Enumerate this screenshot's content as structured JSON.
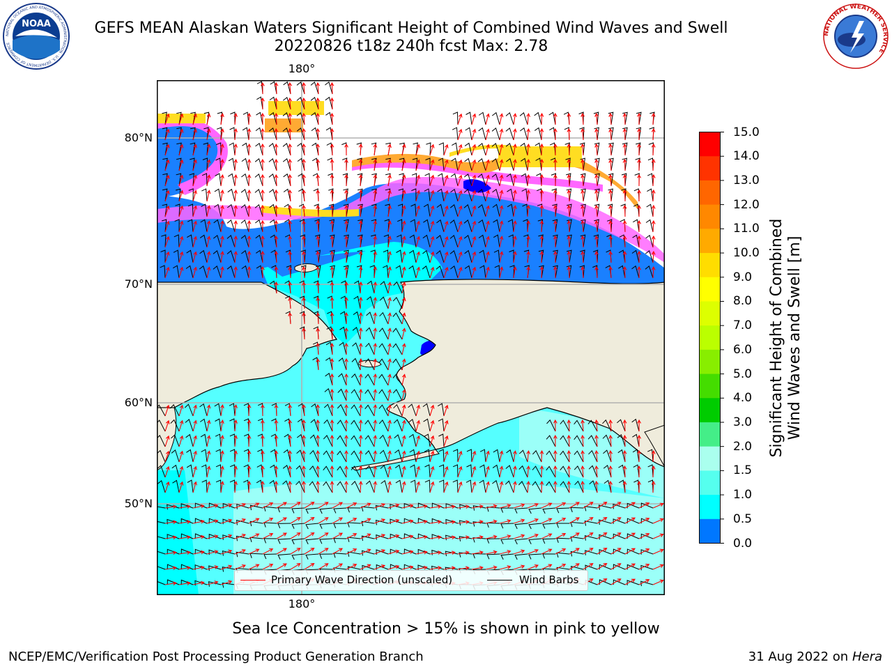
{
  "title_line1": "GEFS MEAN Alaskan Waters Significant Height of Combined Wind Waves and Swell",
  "title_line2": "20220826 t18z 240h fcst   Max: 2.78",
  "lon_label_top": "180°",
  "lon_label_bottom": "180°",
  "lat_labels": [
    "80°N",
    "70°N",
    "60°N",
    "50°N"
  ],
  "colorbar": {
    "label_line1": "Significant Height of Combined",
    "label_line2": "Wind Waves and Swell [m]",
    "ticks": [
      "15.0",
      "14.0",
      "13.0",
      "12.0",
      "11.0",
      "10.0",
      "9.0",
      "8.0",
      "7.0",
      "6.0",
      "5.0",
      "4.0",
      "3.0",
      "2.0",
      "1.5",
      "1.0",
      "0.5",
      "0.0"
    ],
    "colors": [
      "#ff0000",
      "#ff3300",
      "#ff6600",
      "#ff8800",
      "#ffaa00",
      "#ffdd00",
      "#ffff00",
      "#ddff00",
      "#bbff00",
      "#88ee00",
      "#44dd00",
      "#00cc00",
      "#44ee88",
      "#aaffee",
      "#55ffee",
      "#00ffff",
      "#0077ff",
      "#0000ff"
    ]
  },
  "legend": {
    "wave_label": "Primary Wave Direction (unscaled)",
    "wave_color": "#ff0000",
    "barb_label": "Wind Barbs",
    "barb_color": "#000000"
  },
  "caption": "Sea Ice Concentration > 15% is shown in pink to yellow",
  "footer_left": "NCEP/EMC/Verification Post Processing Product Generation Branch",
  "footer_date": "31 Aug 2022 on",
  "footer_machine": "Hera",
  "logos": {
    "noaa_text": "NOAA",
    "noaa_ring": "NATIONAL OCEANIC AND ATMOSPHERIC ADMINISTRATION · U.S. DEPARTMENT OF COMMERCE",
    "nws_ring": "NATIONAL WEATHER SERVICE"
  },
  "colors": {
    "land": "#efecdc",
    "ocean_main": "#55ffff",
    "ocean_light": "#9bfff8",
    "ocean_cyan": "#00ffff",
    "ocean_blue": "#1a80ff",
    "ocean_deep": "#0000ff",
    "ice_pink": "#ff66ff",
    "ice_orange": "#ffaa33",
    "ice_yellow": "#ffdd22"
  }
}
